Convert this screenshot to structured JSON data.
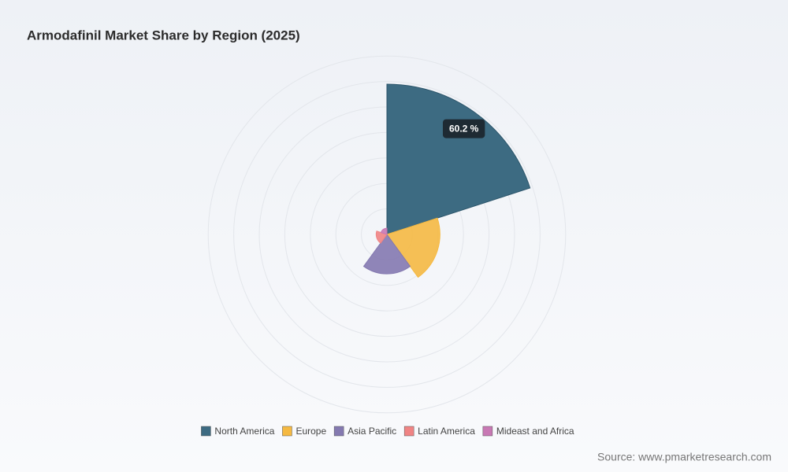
{
  "chart_data": {
    "type": "rose",
    "title": "Armodafinil Market Share by Region (2025)",
    "categories": [
      "North America",
      "Europe",
      "Asia Pacific",
      "Latin America",
      "Mideast and Africa"
    ],
    "values": [
      60.2,
      21.2,
      15.8,
      4.3,
      2.5
    ],
    "value_labels": [
      "60.2 %",
      null,
      null,
      null,
      null
    ],
    "colors": [
      "#3d6b82",
      "#f5b942",
      "#8479b0",
      "#f08484",
      "#c878b4"
    ],
    "legend": "bottom",
    "source": "Source: www.pmarketresearch.com"
  }
}
